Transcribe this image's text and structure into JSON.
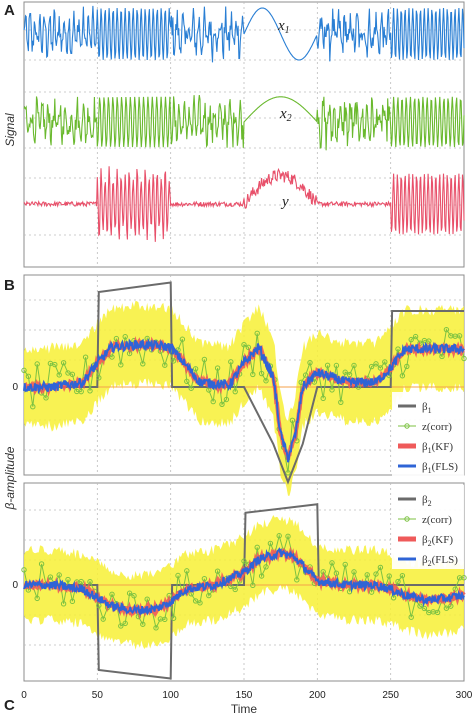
{
  "figure": {
    "panel_letters": {
      "a": "A",
      "b": "B",
      "c": "C"
    },
    "ylabel_top": "Signal",
    "ylabel_bottom": "β-amplitude",
    "xlabel": "Time"
  },
  "colors": {
    "x1": "#2a7fd4",
    "x2": "#6ab92e",
    "y": "#e8506a",
    "beta_true": "#6b6b6b",
    "corr": "#7cc242",
    "kf": "#ef5a5a",
    "fls": "#2f64d6",
    "band": "#f7f035",
    "zero": "#f5a14a"
  },
  "chart_data": [
    {
      "type": "line",
      "panel": "A",
      "ylabel": "Signal",
      "xlim": [
        0,
        300
      ],
      "series": [
        {
          "name": "x1",
          "description_free": true
        },
        {
          "name": "x2"
        },
        {
          "name": "y"
        }
      ],
      "signal_labels": {
        "x1": "x",
        "x1_sub": "1",
        "x2": "x",
        "x2_sub": "2",
        "y": "y"
      },
      "segments_x": [
        0,
        50,
        100,
        150,
        200,
        250,
        300
      ]
    },
    {
      "type": "line",
      "panel": "B",
      "ylabel": "β-amplitude",
      "xlim": [
        0,
        300
      ],
      "ylim": [
        -1.3,
        1.3
      ],
      "zero_tick": "0",
      "legend": [
        "β",
        "z(corr)",
        "β(KF)",
        "β(FLS)"
      ],
      "legend_sub": "1",
      "legend_placement": "lower-right",
      "true_beta": {
        "x": [
          0,
          50,
          51,
          100,
          101,
          150,
          170,
          180,
          190,
          200,
          250,
          251,
          300
        ],
        "y": [
          0,
          0,
          1,
          1.1,
          0,
          0,
          -0.6,
          -1.0,
          -0.6,
          0,
          0,
          0.8,
          0.8
        ]
      },
      "estimate_beta": {
        "x": [
          0,
          20,
          40,
          50,
          60,
          80,
          100,
          120,
          140,
          150,
          160,
          170,
          175,
          180,
          185,
          190,
          200,
          220,
          240,
          250,
          260,
          280,
          300
        ],
        "y": [
          0,
          0,
          0.05,
          0.25,
          0.42,
          0.45,
          0.42,
          0.05,
          0.02,
          0.25,
          0.42,
          0.1,
          -0.5,
          -0.75,
          -0.5,
          0.0,
          0.15,
          0.05,
          0.05,
          0.2,
          0.4,
          0.4,
          0.4
        ]
      }
    },
    {
      "type": "line",
      "panel": "C",
      "xlim": [
        0,
        300
      ],
      "ylim": [
        -1.3,
        1.3
      ],
      "zero_tick": "0",
      "xticks": [
        0,
        50,
        100,
        150,
        200,
        250,
        300
      ],
      "legend": [
        "β",
        "z(corr)",
        "β(KF)",
        "β(FLS)"
      ],
      "legend_sub": "2",
      "legend_placement": "upper-right",
      "true_beta": {
        "x": [
          0,
          50,
          51,
          100,
          101,
          150,
          151,
          200,
          201,
          300
        ],
        "y": [
          0,
          0,
          -1.0,
          -1.1,
          0,
          0,
          0.85,
          0.95,
          0,
          0
        ]
      },
      "estimate_beta": {
        "x": [
          0,
          20,
          40,
          50,
          60,
          75,
          90,
          100,
          110,
          130,
          150,
          160,
          175,
          185,
          200,
          220,
          240,
          250,
          260,
          275,
          290,
          300
        ],
        "y": [
          0,
          0,
          -0.05,
          -0.15,
          -0.25,
          -0.3,
          -0.28,
          -0.2,
          -0.05,
          0.0,
          0.15,
          0.3,
          0.38,
          0.32,
          0.05,
          0.0,
          0.0,
          -0.05,
          -0.12,
          -0.18,
          -0.15,
          -0.12
        ]
      }
    }
  ]
}
